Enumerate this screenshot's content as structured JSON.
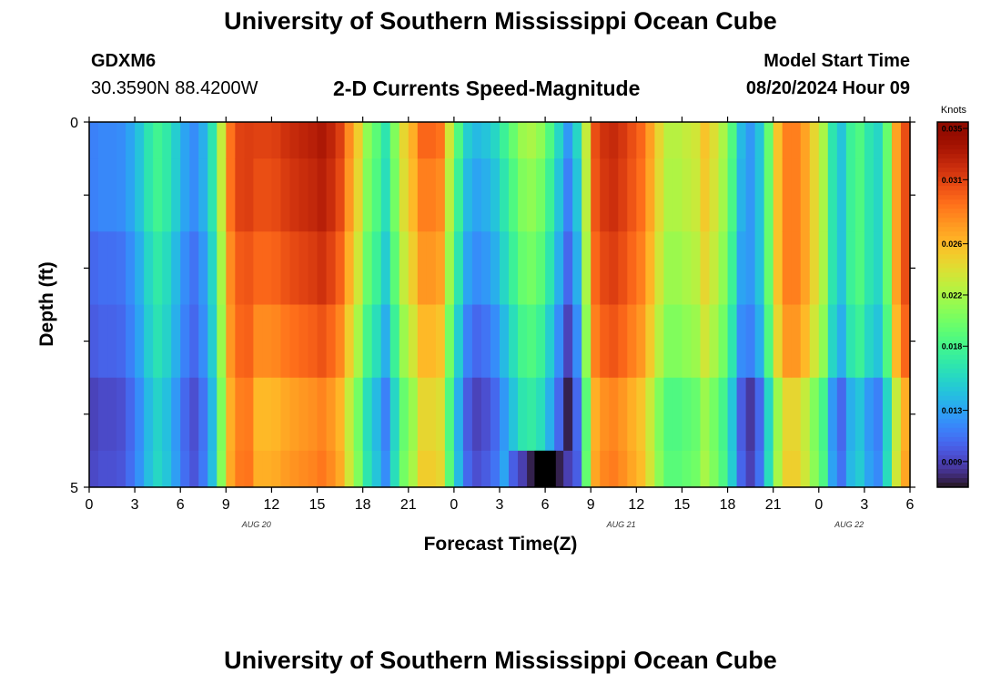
{
  "header": {
    "title": "University of Southern Mississippi Ocean Cube",
    "station": "GDXM6",
    "coordinates": "30.3590N  88.4200W",
    "plot_title": "2-D Currents Speed-Magnitude",
    "start_label": "Model Start Time",
    "start_value": "08/20/2024 Hour 09"
  },
  "footer": {
    "title": "University of Southern Mississippi Ocean Cube"
  },
  "colors": {
    "low": "#30123b",
    "high": "#7a0403",
    "background": "#ffffff"
  },
  "chart_data": {
    "type": "heatmap",
    "title": "2-D Currents Speed-Magnitude",
    "xlabel": "Forecast Time(Z)",
    "ylabel": "Depth (ft)",
    "x_tick_labels": [
      "0",
      "3",
      "6",
      "9",
      "12",
      "15",
      "18",
      "21",
      "0",
      "3",
      "6",
      "9",
      "12",
      "15",
      "18",
      "21",
      "0",
      "3",
      "6"
    ],
    "x_hours": [
      0,
      54
    ],
    "date_labels": [
      {
        "text": "AUG 20",
        "hour": 11
      },
      {
        "text": "AUG 21",
        "hour": 35
      },
      {
        "text": "AUG 22",
        "hour": 50
      }
    ],
    "y_tick_labels": [
      "0",
      "5"
    ],
    "ylim": [
      0,
      5
    ],
    "y_inverted": true,
    "depth_rows": [
      0,
      1,
      2,
      3,
      4,
      5
    ],
    "colorbar": {
      "label": "Knots",
      "ticks": [
        "0.035",
        "0.031",
        "0.026",
        "0.022",
        "0.018",
        "0.013",
        "0.009"
      ],
      "range": [
        0.007,
        0.0355
      ]
    },
    "colormap": "turbo",
    "profile": [
      0.0115,
      0.0118,
      0.0118,
      0.012,
      0.013,
      0.0145,
      0.0165,
      0.0178,
      0.0168,
      0.015,
      0.013,
      0.012,
      0.0135,
      0.0165,
      0.023,
      0.029,
      0.031,
      0.0312,
      0.031,
      0.031,
      0.0312,
      0.0318,
      0.0322,
      0.0325,
      0.0328,
      0.0333,
      0.0325,
      0.0312,
      0.028,
      0.025,
      0.021,
      0.019,
      0.0165,
      0.0205,
      0.0245,
      0.0265,
      0.0295,
      0.0295,
      0.029,
      0.0235,
      0.0185,
      0.015,
      0.014,
      0.0145,
      0.0155,
      0.0175,
      0.0195,
      0.0215,
      0.022,
      0.021,
      0.0185,
      0.0155,
      0.0125,
      0.0155,
      0.023,
      0.0305,
      0.0318,
      0.0322,
      0.0315,
      0.0305,
      0.0295,
      0.0272,
      0.0245,
      0.0225,
      0.0225,
      0.023,
      0.0235,
      0.0255,
      0.024,
      0.022,
      0.0185,
      0.014,
      0.0125,
      0.0145,
      0.0195,
      0.0255,
      0.0285,
      0.0285,
      0.027,
      0.0245,
      0.022,
      0.0165,
      0.0145,
      0.0175,
      0.0185,
      0.0165,
      0.0155,
      0.0195,
      0.027,
      0.0305
    ],
    "depth_offsets": [
      [
        0.0,
        0.0,
        -0.001,
        -0.0015,
        -0.0025
      ],
      [
        0.0,
        -0.0005,
        -0.0015,
        -0.003,
        -0.005
      ],
      [
        0.0,
        -0.001,
        -0.002,
        -0.0035,
        -0.005
      ],
      [
        0.0,
        -0.0003,
        -0.001,
        -0.002,
        -0.004
      ],
      [
        0.0,
        0.0,
        0.0,
        -0.001,
        -0.004
      ]
    ],
    "dark_patch": {
      "hour_start": 29,
      "hour_end": 31,
      "depth": 4.5,
      "value": 0.0055
    }
  }
}
